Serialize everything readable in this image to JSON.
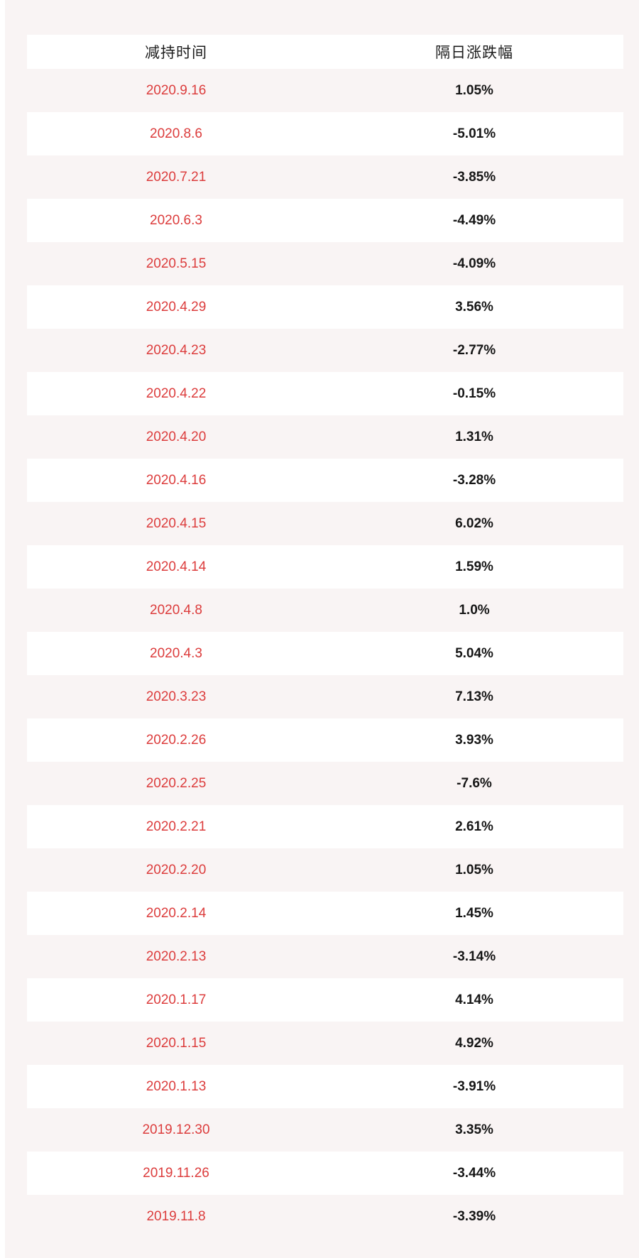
{
  "colors": {
    "page_background": "#f9f4f4",
    "row_alt_background": "#ffffff",
    "date_text": "#dc3c3c",
    "value_text": "#161616",
    "header_text": "#1c1c1c"
  },
  "chart_data": {
    "type": "table",
    "columns": [
      "减持时间",
      "隔日涨跌幅"
    ],
    "rows": [
      [
        "2020.9.16",
        "1.05%"
      ],
      [
        "2020.8.6",
        "-5.01%"
      ],
      [
        "2020.7.21",
        "-3.85%"
      ],
      [
        "2020.6.3",
        "-4.49%"
      ],
      [
        "2020.5.15",
        "-4.09%"
      ],
      [
        "2020.4.29",
        "3.56%"
      ],
      [
        "2020.4.23",
        "-2.77%"
      ],
      [
        "2020.4.22",
        "-0.15%"
      ],
      [
        "2020.4.20",
        "1.31%"
      ],
      [
        "2020.4.16",
        "-3.28%"
      ],
      [
        "2020.4.15",
        "6.02%"
      ],
      [
        "2020.4.14",
        "1.59%"
      ],
      [
        "2020.4.8",
        "1.0%"
      ],
      [
        "2020.4.3",
        "5.04%"
      ],
      [
        "2020.3.23",
        "7.13%"
      ],
      [
        "2020.2.26",
        "3.93%"
      ],
      [
        "2020.2.25",
        "-7.6%"
      ],
      [
        "2020.2.21",
        "2.61%"
      ],
      [
        "2020.2.20",
        "1.05%"
      ],
      [
        "2020.2.14",
        "1.45%"
      ],
      [
        "2020.2.13",
        "-3.14%"
      ],
      [
        "2020.1.17",
        "4.14%"
      ],
      [
        "2020.1.15",
        "4.92%"
      ],
      [
        "2020.1.13",
        "-3.91%"
      ],
      [
        "2019.12.30",
        "3.35%"
      ],
      [
        "2019.11.26",
        "-3.44%"
      ],
      [
        "2019.11.8",
        "-3.39%"
      ]
    ],
    "title": "",
    "legend": false,
    "grid": false
  }
}
